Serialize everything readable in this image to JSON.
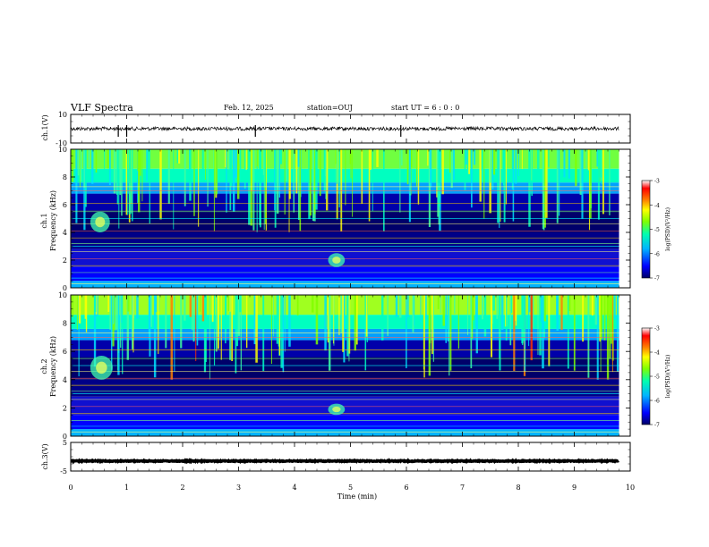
{
  "header": {
    "title": "VLF Spectra",
    "date": "Feb. 12, 2025",
    "station": "station=OUJ",
    "start_ut": "start UT = 6 : 0 : 0"
  },
  "colorbar": {
    "label": "log(PSD)(V²/Hz)",
    "ticks": [
      "-3",
      "-4",
      "-5",
      "-6",
      "-7"
    ],
    "colors": [
      "#000066",
      "#0000ff",
      "#00b4ff",
      "#00ffb0",
      "#80ff00",
      "#ffff00",
      "#ff8000",
      "#ff0000",
      "#ffffff"
    ]
  },
  "chart_data": [
    {
      "type": "line",
      "panel": "ch1-waveform",
      "ylabel": "ch.1(V)",
      "ylim": [
        -10,
        10
      ],
      "yticks": [
        "10",
        "-10"
      ],
      "xlim": [
        0,
        10
      ],
      "x_unit": "min",
      "baseline": 0,
      "note_spikes_x": [
        0.85,
        1.0,
        3.3,
        5.9
      ]
    },
    {
      "type": "heatmap",
      "panel": "ch1-spectrogram",
      "ylabel": "ch.1 Frequency (kHz)",
      "ylim": [
        0,
        10
      ],
      "yticks": [
        "0",
        "2",
        "4",
        "6",
        "8",
        "10"
      ],
      "xlim": [
        0,
        10
      ],
      "features": [
        {
          "name": "hiss",
          "x": [
            0.35,
            0.7
          ],
          "y": [
            4,
            5.5
          ]
        },
        {
          "name": "hiss",
          "x": [
            4.6,
            4.9
          ],
          "y": [
            1.5,
            2.5
          ]
        }
      ]
    },
    {
      "type": "heatmap",
      "panel": "ch2-spectrogram",
      "ylabel": "ch.2 Frequency (kHz)",
      "ylim": [
        0,
        10
      ],
      "yticks": [
        "0",
        "2",
        "4",
        "6",
        "8",
        "10"
      ],
      "xlim": [
        0,
        10
      ],
      "features": [
        {
          "name": "hiss",
          "x": [
            0.35,
            0.75
          ],
          "y": [
            4,
            5.7
          ]
        },
        {
          "name": "hiss",
          "x": [
            4.6,
            4.9
          ],
          "y": [
            1.5,
            2.3
          ]
        }
      ]
    },
    {
      "type": "line",
      "panel": "ch3-waveform",
      "ylabel": "ch.3(V)",
      "ylim": [
        -5,
        5
      ],
      "yticks": [
        "5",
        "-5"
      ],
      "xlim": [
        0,
        10
      ],
      "baseline": -1.5
    }
  ],
  "xaxis": {
    "label": "Time (min)",
    "ticks": [
      "0",
      "1",
      "2",
      "3",
      "4",
      "5",
      "6",
      "7",
      "8",
      "9",
      "10"
    ],
    "data_end": 9.8
  }
}
